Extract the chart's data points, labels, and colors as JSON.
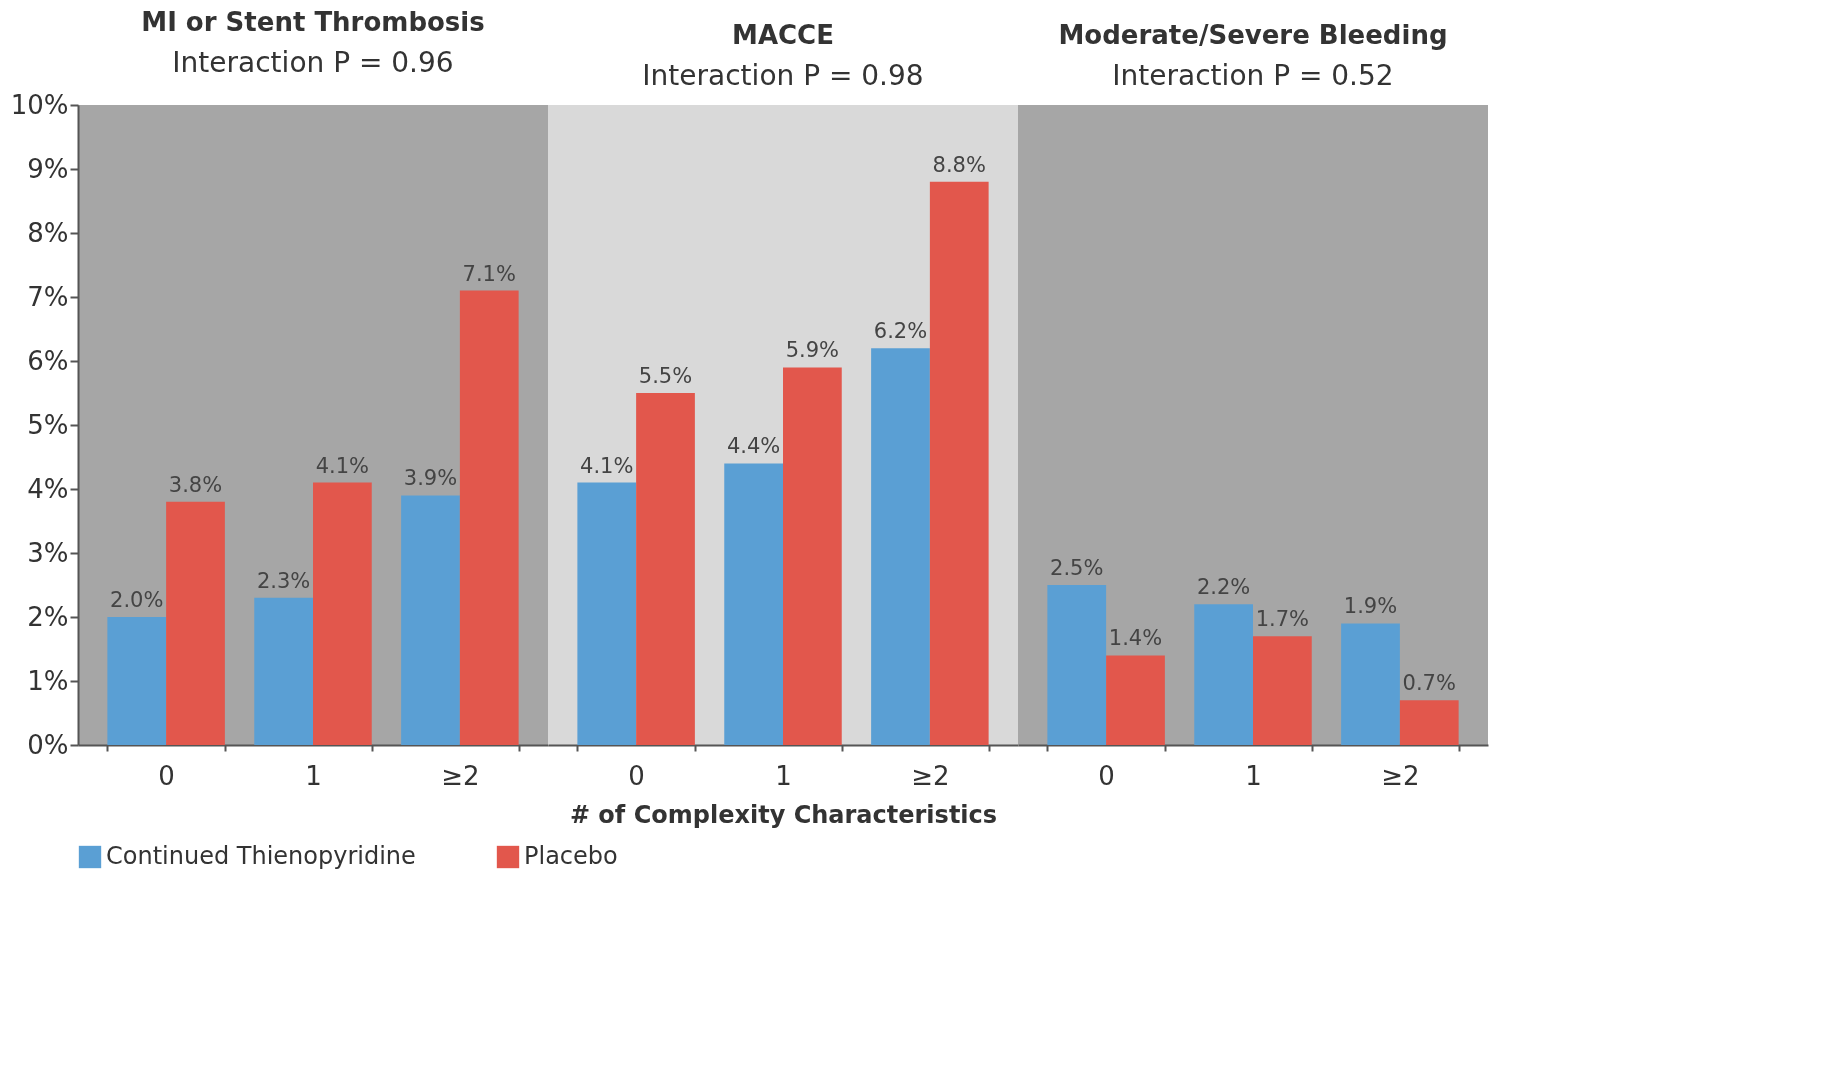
{
  "chart_data": [
    {
      "type": "bar",
      "title": "MI or Stent Thrombosis",
      "subtitle": "Interaction P = 0.96",
      "categories": [
        "0",
        "1",
        "≥2"
      ],
      "series": [
        {
          "name": "Continued Thienopyridine",
          "color": "#5a9fd4",
          "values": [
            2.0,
            2.3,
            3.9
          ],
          "value_labels": [
            "2.0%",
            "2.3%",
            "3.9%"
          ]
        },
        {
          "name": "Placebo",
          "color": "#e2574c",
          "values": [
            3.8,
            4.1,
            7.1
          ],
          "value_labels": [
            "3.8%",
            "4.1%",
            "7.1%"
          ]
        }
      ],
      "ylim": [
        0,
        10
      ],
      "yticks": [
        {
          "value": 0,
          "label": "0%"
        },
        {
          "value": 1,
          "label": "1%"
        },
        {
          "value": 2,
          "label": "2%"
        },
        {
          "value": 3,
          "label": "3%"
        },
        {
          "value": 4,
          "label": "4%"
        },
        {
          "value": 5,
          "label": "5%"
        },
        {
          "value": 6,
          "label": "6%"
        },
        {
          "value": 7,
          "label": "7%"
        },
        {
          "value": 8,
          "label": "8%"
        },
        {
          "value": 9,
          "label": "9%"
        },
        {
          "value": 10,
          "label": "10%"
        }
      ],
      "legend": "bottom"
    },
    {
      "type": "bar",
      "title": "MACCE",
      "subtitle": "Interaction P = 0.98",
      "xlabel": "# of Complexity Characteristics",
      "categories": [
        "0",
        "1",
        "≥2"
      ],
      "series": [
        {
          "name": "Continued Thienopyridine",
          "color": "#5a9fd4",
          "values": [
            4.1,
            4.4,
            6.2
          ],
          "value_labels": [
            "4.1%",
            "4.4%",
            "6.2%"
          ]
        },
        {
          "name": "Placebo",
          "color": "#e2574c",
          "values": [
            5.5,
            5.9,
            8.8
          ],
          "value_labels": [
            "5.5%",
            "5.9%",
            "8.8%"
          ]
        }
      ],
      "ylim": [
        0,
        10
      ],
      "tick_labels": "x",
      "legend": "bottom"
    },
    {
      "type": "bar",
      "title": "Moderate/Severe Bleeding",
      "subtitle": "Interaction P = 0.52",
      "categories": [
        "0",
        "1",
        "≥2"
      ],
      "series": [
        {
          "name": "Continued Thienopyridine",
          "color": "#5a9fd4",
          "values": [
            2.5,
            2.2,
            1.9
          ],
          "value_labels": [
            "2.5%",
            "2.2%",
            "1.9%"
          ]
        },
        {
          "name": "Placebo",
          "color": "#e2574c",
          "values": [
            1.4,
            1.7,
            0.7
          ],
          "value_labels": [
            "1.4%",
            "1.7%",
            "0.7%"
          ]
        }
      ],
      "ylim": [
        0,
        10
      ],
      "tick_labels": "x",
      "legend": "bottom"
    }
  ]
}
